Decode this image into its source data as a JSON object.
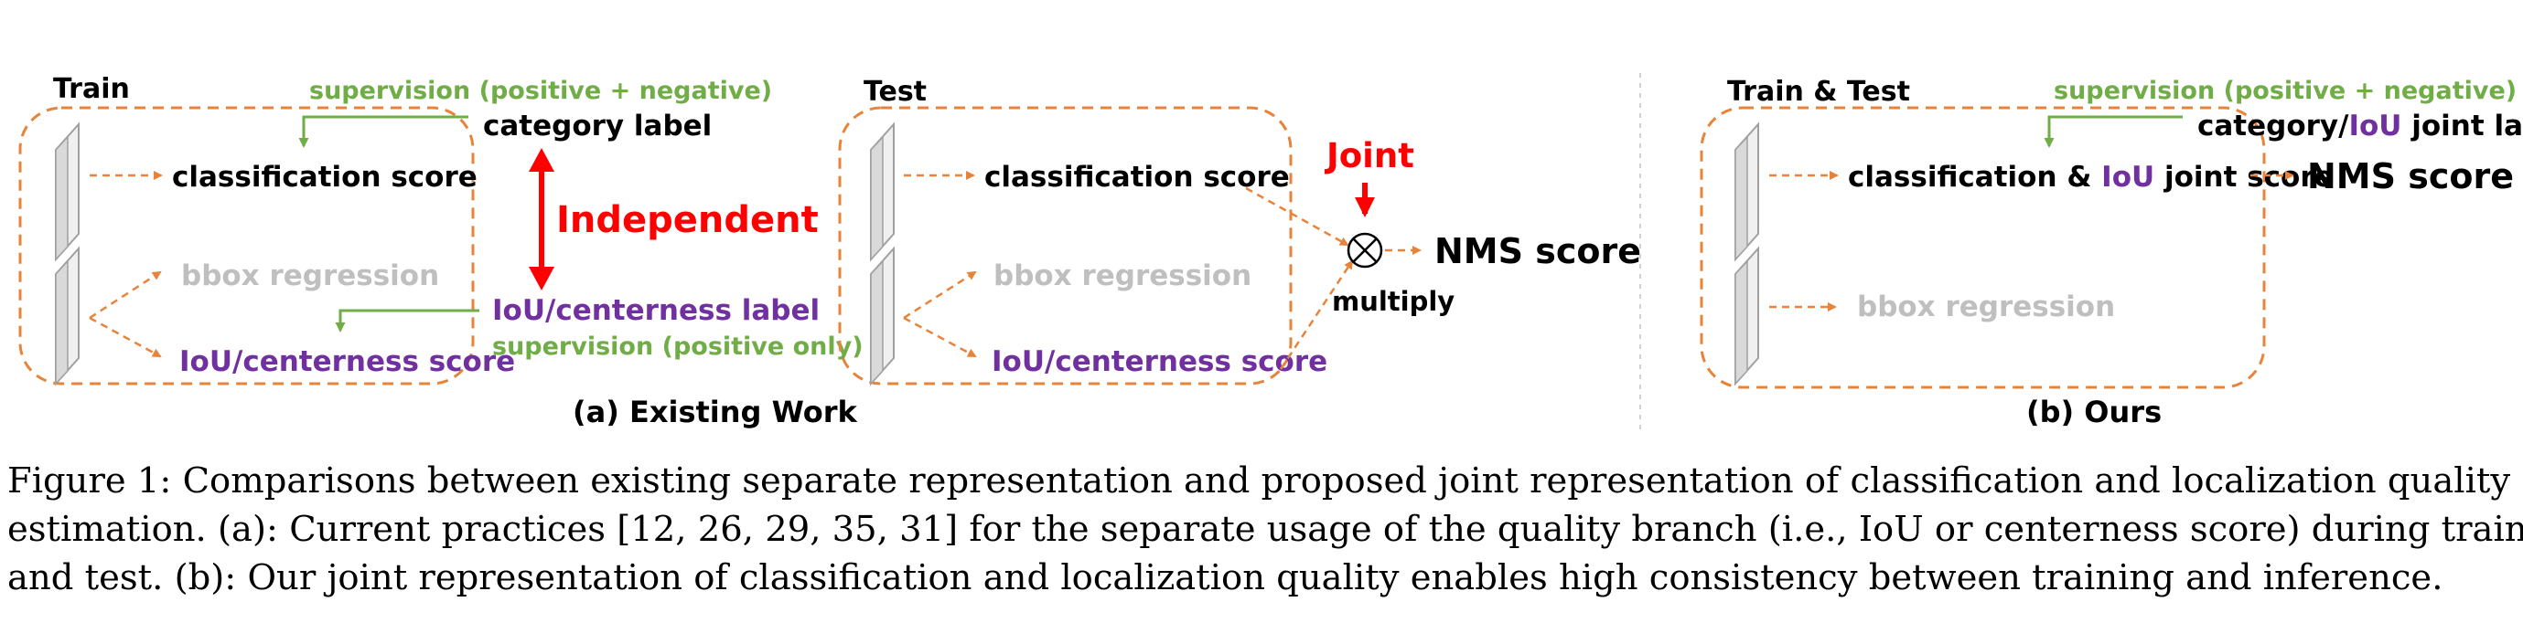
{
  "colors": {
    "orange": "#e8833a",
    "green": "#70ad47",
    "purple": "#7030a0",
    "red": "#ff0000",
    "gray": "#bfbfbf",
    "black": "#000000",
    "divider": "#d0d0d0"
  },
  "panel_a": {
    "train": {
      "title": "Train",
      "supervision_top": "supervision (positive + negative)",
      "category_label": "category label",
      "classification_score": "classification score",
      "bbox_regression": "bbox regression",
      "iou_score": "IoU/centerness score",
      "iou_label": "IoU/centerness label",
      "supervision_bottom": "supervision (positive only)"
    },
    "independent": "Independent",
    "test": {
      "title": "Test",
      "classification_score": "classification score",
      "bbox_regression": "bbox regression",
      "iou_score": "IoU/centerness score"
    },
    "joint": "Joint",
    "multiply": "multiply",
    "nms_score": "NMS score",
    "sublabel": "(a)  Existing Work"
  },
  "panel_b": {
    "title": "Train & Test",
    "supervision_top": "supervision (positive + negative)",
    "joint_label_part1": "category/",
    "joint_label_iou": "IoU",
    "joint_label_part2": " joint label",
    "joint_score_part1": "classification & ",
    "joint_score_iou": "IoU",
    "joint_score_part2": " joint score",
    "nms_score": "NMS score",
    "bbox_regression": "bbox regression",
    "sublabel": "(b)  Ours"
  },
  "caption": {
    "line1": "Figure 1: Comparisons between existing separate representation and proposed joint representation of classification and localization quality",
    "line2": "estimation. (a): Current practices [12, 26, 29, 35, 31] for the separate usage of the quality branch (i.e., IoU or centerness score) during training",
    "line3": "and test. (b): Our joint representation of classification and localization quality enables high consistency between training and inference."
  }
}
